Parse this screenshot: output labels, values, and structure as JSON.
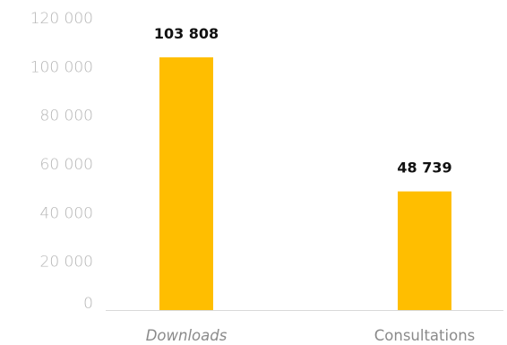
{
  "chart_data": {
    "type": "bar",
    "categories": [
      "Downloads",
      "Consultations"
    ],
    "category_styles": [
      "italic",
      "normal"
    ],
    "values": [
      103808,
      48739
    ],
    "data_labels": [
      "103 808",
      "48 739"
    ],
    "yticks": [
      0,
      20000,
      40000,
      60000,
      80000,
      100000,
      120000
    ],
    "ytick_labels": [
      "0",
      "20 000",
      "40 000",
      "60 000",
      "80 000",
      "100 000",
      "120 000"
    ],
    "ylim": [
      0,
      120000
    ],
    "title": "",
    "xlabel": "",
    "ylabel": "",
    "grid": false,
    "legend": "none",
    "bar_color": "#FFBE00",
    "axis_color": "#d9d9d9"
  }
}
